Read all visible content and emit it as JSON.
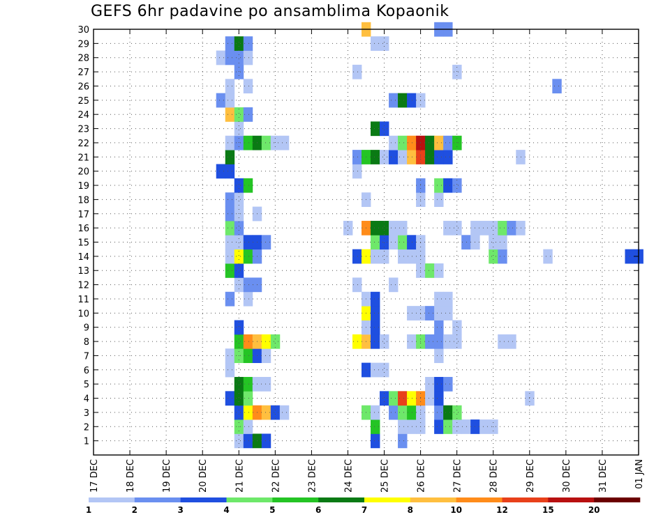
{
  "chart_data": {
    "type": "heatmap",
    "title": "GEFS 6hr padavine po ansamblima Kopaonik",
    "xlabel": "",
    "ylabel": "",
    "x_ticks": [
      "17 DEC",
      "18 DEC",
      "19 DEC",
      "20 DEC",
      "21 DEC",
      "22 DEC",
      "23 DEC",
      "24 DEC",
      "25 DEC",
      "26 DEC",
      "27 DEC",
      "28 DEC",
      "29 DEC",
      "30 DEC",
      "31 DEC",
      "01 JAN"
    ],
    "x_range_days": [
      0,
      15
    ],
    "time_step_hours": 6,
    "y_ticks": [
      1,
      2,
      3,
      4,
      5,
      6,
      7,
      8,
      9,
      10,
      11,
      12,
      13,
      14,
      15,
      16,
      17,
      18,
      19,
      20,
      21,
      22,
      23,
      24,
      25,
      26,
      27,
      28,
      29,
      30
    ],
    "y_range": [
      0,
      30
    ],
    "grid": true,
    "colorbar": {
      "labels": [
        "1",
        "2",
        "3",
        "4",
        "5",
        "6",
        "7",
        "8",
        "10",
        "12",
        "15",
        "20"
      ],
      "colors": [
        "#b3c6f5",
        "#6a8ff0",
        "#1f4fe0",
        "#6ee86a",
        "#24c424",
        "#0a7a14",
        "#ffff00",
        "#ffbf3f",
        "#ff8c1a",
        "#e8401a",
        "#b81010",
        "#6b0000"
      ]
    },
    "cells": [
      {
        "m": 1,
        "d": 4.0,
        "c": 1
      },
      {
        "m": 1,
        "d": 4.25,
        "c": 3
      },
      {
        "m": 1,
        "d": 4.5,
        "c": 6
      },
      {
        "m": 1,
        "d": 4.75,
        "c": 3
      },
      {
        "m": 1,
        "d": 7.75,
        "c": 3
      },
      {
        "m": 1,
        "d": 8.5,
        "c": 2
      },
      {
        "m": 2,
        "d": 4.0,
        "c": 4
      },
      {
        "m": 2,
        "d": 4.25,
        "c": 1
      },
      {
        "m": 2,
        "d": 7.75,
        "c": 5
      },
      {
        "m": 2,
        "d": 8.5,
        "c": 1
      },
      {
        "m": 2,
        "d": 8.75,
        "c": 1
      },
      {
        "m": 2,
        "d": 9.0,
        "c": 1
      },
      {
        "m": 2,
        "d": 9.5,
        "c": 3
      },
      {
        "m": 2,
        "d": 9.75,
        "c": 4
      },
      {
        "m": 2,
        "d": 10.0,
        "c": 1
      },
      {
        "m": 2,
        "d": 10.25,
        "c": 1
      },
      {
        "m": 2,
        "d": 10.5,
        "c": 3
      },
      {
        "m": 2,
        "d": 10.75,
        "c": 1
      },
      {
        "m": 2,
        "d": 11.0,
        "c": 1
      },
      {
        "m": 3,
        "d": 4.0,
        "c": 3
      },
      {
        "m": 3,
        "d": 4.25,
        "c": 7
      },
      {
        "m": 3,
        "d": 4.5,
        "c": 9
      },
      {
        "m": 3,
        "d": 4.75,
        "c": 8
      },
      {
        "m": 3,
        "d": 5.0,
        "c": 3
      },
      {
        "m": 3,
        "d": 5.25,
        "c": 1
      },
      {
        "m": 3,
        "d": 7.5,
        "c": 4
      },
      {
        "m": 3,
        "d": 7.75,
        "c": 1
      },
      {
        "m": 3,
        "d": 8.25,
        "c": 2
      },
      {
        "m": 3,
        "d": 8.5,
        "c": 4
      },
      {
        "m": 3,
        "d": 8.75,
        "c": 5
      },
      {
        "m": 3,
        "d": 9.0,
        "c": 1
      },
      {
        "m": 3,
        "d": 9.5,
        "c": 2
      },
      {
        "m": 3,
        "d": 9.75,
        "c": 6
      },
      {
        "m": 3,
        "d": 10.0,
        "c": 4
      },
      {
        "m": 4,
        "d": 3.75,
        "c": 3
      },
      {
        "m": 4,
        "d": 4.0,
        "c": 6
      },
      {
        "m": 4,
        "d": 4.25,
        "c": 4
      },
      {
        "m": 4,
        "d": 8.0,
        "c": 3
      },
      {
        "m": 4,
        "d": 8.25,
        "c": 4
      },
      {
        "m": 4,
        "d": 8.5,
        "c": 10
      },
      {
        "m": 4,
        "d": 8.75,
        "c": 7
      },
      {
        "m": 4,
        "d": 9.0,
        "c": 9
      },
      {
        "m": 4,
        "d": 9.25,
        "c": 1
      },
      {
        "m": 4,
        "d": 9.5,
        "c": 3
      },
      {
        "m": 4,
        "d": 12.0,
        "c": 1
      },
      {
        "m": 5,
        "d": 4.0,
        "c": 6
      },
      {
        "m": 5,
        "d": 4.25,
        "c": 5
      },
      {
        "m": 5,
        "d": 4.5,
        "c": 1
      },
      {
        "m": 5,
        "d": 4.75,
        "c": 1
      },
      {
        "m": 5,
        "d": 9.25,
        "c": 1
      },
      {
        "m": 5,
        "d": 9.5,
        "c": 3
      },
      {
        "m": 5,
        "d": 9.75,
        "c": 2
      },
      {
        "m": 6,
        "d": 3.75,
        "c": 1
      },
      {
        "m": 6,
        "d": 7.5,
        "c": 3
      },
      {
        "m": 6,
        "d": 7.75,
        "c": 1
      },
      {
        "m": 6,
        "d": 8.0,
        "c": 1
      },
      {
        "m": 7,
        "d": 3.75,
        "c": 1
      },
      {
        "m": 7,
        "d": 4.0,
        "c": 4
      },
      {
        "m": 7,
        "d": 4.25,
        "c": 5
      },
      {
        "m": 7,
        "d": 4.5,
        "c": 3
      },
      {
        "m": 7,
        "d": 4.75,
        "c": 1
      },
      {
        "m": 7,
        "d": 9.5,
        "c": 1
      },
      {
        "m": 8,
        "d": 4.0,
        "c": 5
      },
      {
        "m": 8,
        "d": 4.25,
        "c": 9
      },
      {
        "m": 8,
        "d": 4.5,
        "c": 8
      },
      {
        "m": 8,
        "d": 4.75,
        "c": 7
      },
      {
        "m": 8,
        "d": 5.0,
        "c": 4
      },
      {
        "m": 8,
        "d": 7.25,
        "c": 7
      },
      {
        "m": 8,
        "d": 7.5,
        "c": 8
      },
      {
        "m": 8,
        "d": 7.75,
        "c": 3
      },
      {
        "m": 8,
        "d": 8.0,
        "c": 1
      },
      {
        "m": 8,
        "d": 8.75,
        "c": 1
      },
      {
        "m": 8,
        "d": 9.0,
        "c": 4
      },
      {
        "m": 8,
        "d": 9.25,
        "c": 2
      },
      {
        "m": 8,
        "d": 9.5,
        "c": 2
      },
      {
        "m": 8,
        "d": 9.75,
        "c": 1
      },
      {
        "m": 8,
        "d": 10.0,
        "c": 1
      },
      {
        "m": 8,
        "d": 11.25,
        "c": 1
      },
      {
        "m": 8,
        "d": 11.5,
        "c": 1
      },
      {
        "m": 9,
        "d": 4.0,
        "c": 3
      },
      {
        "m": 9,
        "d": 7.5,
        "c": 1
      },
      {
        "m": 9,
        "d": 7.75,
        "c": 3
      },
      {
        "m": 9,
        "d": 9.5,
        "c": 2
      },
      {
        "m": 9,
        "d": 10.0,
        "c": 1
      },
      {
        "m": 10,
        "d": 7.5,
        "c": 7
      },
      {
        "m": 10,
        "d": 7.75,
        "c": 3
      },
      {
        "m": 10,
        "d": 8.75,
        "c": 1
      },
      {
        "m": 10,
        "d": 9.0,
        "c": 1
      },
      {
        "m": 10,
        "d": 9.25,
        "c": 2
      },
      {
        "m": 10,
        "d": 9.5,
        "c": 1
      },
      {
        "m": 10,
        "d": 9.75,
        "c": 1
      },
      {
        "m": 11,
        "d": 3.75,
        "c": 2
      },
      {
        "m": 11,
        "d": 4.25,
        "c": 1
      },
      {
        "m": 11,
        "d": 7.5,
        "c": 1
      },
      {
        "m": 11,
        "d": 7.75,
        "c": 3
      },
      {
        "m": 11,
        "d": 9.5,
        "c": 1
      },
      {
        "m": 11,
        "d": 9.75,
        "c": 1
      },
      {
        "m": 12,
        "d": 4.0,
        "c": 1
      },
      {
        "m": 12,
        "d": 4.25,
        "c": 2
      },
      {
        "m": 12,
        "d": 4.5,
        "c": 2
      },
      {
        "m": 12,
        "d": 7.25,
        "c": 1
      },
      {
        "m": 12,
        "d": 8.25,
        "c": 1
      },
      {
        "m": 13,
        "d": 3.75,
        "c": 5
      },
      {
        "m": 13,
        "d": 4.0,
        "c": 3
      },
      {
        "m": 13,
        "d": 9.0,
        "c": 1
      },
      {
        "m": 13,
        "d": 9.25,
        "c": 4
      },
      {
        "m": 13,
        "d": 9.5,
        "c": 1
      },
      {
        "m": 14,
        "d": 3.75,
        "c": 1
      },
      {
        "m": 14,
        "d": 4.0,
        "c": 7
      },
      {
        "m": 14,
        "d": 4.25,
        "c": 5
      },
      {
        "m": 14,
        "d": 4.5,
        "c": 2
      },
      {
        "m": 14,
        "d": 7.25,
        "c": 3
      },
      {
        "m": 14,
        "d": 7.5,
        "c": 7
      },
      {
        "m": 14,
        "d": 7.75,
        "c": 1
      },
      {
        "m": 14,
        "d": 8.0,
        "c": 1
      },
      {
        "m": 14,
        "d": 8.5,
        "c": 1
      },
      {
        "m": 14,
        "d": 8.75,
        "c": 1
      },
      {
        "m": 14,
        "d": 9.0,
        "c": 1
      },
      {
        "m": 14,
        "d": 11.0,
        "c": 4
      },
      {
        "m": 14,
        "d": 11.25,
        "c": 2
      },
      {
        "m": 14,
        "d": 12.5,
        "c": 1
      },
      {
        "m": 14,
        "d": 14.75,
        "c": 3
      },
      {
        "m": 14,
        "d": 15.0,
        "c": 3
      },
      {
        "m": 15,
        "d": 3.75,
        "c": 1
      },
      {
        "m": 15,
        "d": 4.0,
        "c": 1
      },
      {
        "m": 15,
        "d": 4.25,
        "c": 3
      },
      {
        "m": 15,
        "d": 4.5,
        "c": 3
      },
      {
        "m": 15,
        "d": 4.75,
        "c": 2
      },
      {
        "m": 15,
        "d": 7.75,
        "c": 4
      },
      {
        "m": 15,
        "d": 8.0,
        "c": 3
      },
      {
        "m": 15,
        "d": 8.25,
        "c": 1
      },
      {
        "m": 15,
        "d": 8.5,
        "c": 4
      },
      {
        "m": 15,
        "d": 8.75,
        "c": 3
      },
      {
        "m": 15,
        "d": 9.0,
        "c": 1
      },
      {
        "m": 15,
        "d": 10.25,
        "c": 2
      },
      {
        "m": 15,
        "d": 10.5,
        "c": 1
      },
      {
        "m": 15,
        "d": 11.0,
        "c": 1
      },
      {
        "m": 15,
        "d": 11.25,
        "c": 1
      },
      {
        "m": 16,
        "d": 3.75,
        "c": 4
      },
      {
        "m": 16,
        "d": 4.0,
        "c": 2
      },
      {
        "m": 16,
        "d": 7.0,
        "c": 1
      },
      {
        "m": 16,
        "d": 7.5,
        "c": 9
      },
      {
        "m": 16,
        "d": 7.75,
        "c": 6
      },
      {
        "m": 16,
        "d": 8.0,
        "c": 6
      },
      {
        "m": 16,
        "d": 8.25,
        "c": 1
      },
      {
        "m": 16,
        "d": 8.5,
        "c": 1
      },
      {
        "m": 16,
        "d": 9.75,
        "c": 1
      },
      {
        "m": 16,
        "d": 10.0,
        "c": 1
      },
      {
        "m": 16,
        "d": 10.5,
        "c": 1
      },
      {
        "m": 16,
        "d": 10.75,
        "c": 1
      },
      {
        "m": 16,
        "d": 11.0,
        "c": 1
      },
      {
        "m": 16,
        "d": 11.25,
        "c": 4
      },
      {
        "m": 16,
        "d": 11.5,
        "c": 2
      },
      {
        "m": 16,
        "d": 11.75,
        "c": 1
      },
      {
        "m": 17,
        "d": 3.75,
        "c": 2
      },
      {
        "m": 17,
        "d": 4.0,
        "c": 1
      },
      {
        "m": 17,
        "d": 4.5,
        "c": 1
      },
      {
        "m": 18,
        "d": 3.75,
        "c": 2
      },
      {
        "m": 18,
        "d": 4.0,
        "c": 1
      },
      {
        "m": 18,
        "d": 7.5,
        "c": 1
      },
      {
        "m": 18,
        "d": 9.0,
        "c": 1
      },
      {
        "m": 18,
        "d": 9.5,
        "c": 1
      },
      {
        "m": 19,
        "d": 4.0,
        "c": 3
      },
      {
        "m": 19,
        "d": 4.25,
        "c": 5
      },
      {
        "m": 19,
        "d": 9.0,
        "c": 2
      },
      {
        "m": 19,
        "d": 9.5,
        "c": 4
      },
      {
        "m": 19,
        "d": 9.75,
        "c": 3
      },
      {
        "m": 19,
        "d": 10.0,
        "c": 2
      },
      {
        "m": 20,
        "d": 3.5,
        "c": 3
      },
      {
        "m": 20,
        "d": 3.75,
        "c": 3
      },
      {
        "m": 20,
        "d": 7.25,
        "c": 1
      },
      {
        "m": 21,
        "d": 3.75,
        "c": 6
      },
      {
        "m": 21,
        "d": 7.25,
        "c": 2
      },
      {
        "m": 21,
        "d": 7.5,
        "c": 5
      },
      {
        "m": 21,
        "d": 7.75,
        "c": 6
      },
      {
        "m": 21,
        "d": 8.0,
        "c": 1
      },
      {
        "m": 21,
        "d": 8.25,
        "c": 3
      },
      {
        "m": 21,
        "d": 8.5,
        "c": 1
      },
      {
        "m": 21,
        "d": 8.75,
        "c": 8
      },
      {
        "m": 21,
        "d": 9.0,
        "c": 10
      },
      {
        "m": 21,
        "d": 9.25,
        "c": 6
      },
      {
        "m": 21,
        "d": 9.5,
        "c": 3
      },
      {
        "m": 21,
        "d": 9.75,
        "c": 3
      },
      {
        "m": 21,
        "d": 11.75,
        "c": 1
      },
      {
        "m": 22,
        "d": 3.75,
        "c": 1
      },
      {
        "m": 22,
        "d": 4.0,
        "c": 2
      },
      {
        "m": 22,
        "d": 4.25,
        "c": 5
      },
      {
        "m": 22,
        "d": 4.5,
        "c": 6
      },
      {
        "m": 22,
        "d": 4.75,
        "c": 4
      },
      {
        "m": 22,
        "d": 5.0,
        "c": 1
      },
      {
        "m": 22,
        "d": 5.25,
        "c": 1
      },
      {
        "m": 22,
        "d": 8.25,
        "c": 1
      },
      {
        "m": 22,
        "d": 8.5,
        "c": 4
      },
      {
        "m": 22,
        "d": 8.75,
        "c": 9
      },
      {
        "m": 22,
        "d": 9.0,
        "c": 11
      },
      {
        "m": 22,
        "d": 9.25,
        "c": 6
      },
      {
        "m": 22,
        "d": 9.5,
        "c": 8
      },
      {
        "m": 22,
        "d": 9.75,
        "c": 2
      },
      {
        "m": 22,
        "d": 10.0,
        "c": 5
      },
      {
        "m": 23,
        "d": 4.0,
        "c": 1
      },
      {
        "m": 23,
        "d": 7.75,
        "c": 6
      },
      {
        "m": 23,
        "d": 8.0,
        "c": 3
      },
      {
        "m": 24,
        "d": 3.75,
        "c": 8
      },
      {
        "m": 24,
        "d": 4.0,
        "c": 4
      },
      {
        "m": 24,
        "d": 4.25,
        "c": 2
      },
      {
        "m": 25,
        "d": 3.5,
        "c": 2
      },
      {
        "m": 25,
        "d": 3.75,
        "c": 1
      },
      {
        "m": 25,
        "d": 8.25,
        "c": 2
      },
      {
        "m": 25,
        "d": 8.5,
        "c": 6
      },
      {
        "m": 25,
        "d": 8.75,
        "c": 3
      },
      {
        "m": 25,
        "d": 9.0,
        "c": 1
      },
      {
        "m": 26,
        "d": 3.75,
        "c": 1
      },
      {
        "m": 26,
        "d": 4.25,
        "c": 1
      },
      {
        "m": 26,
        "d": 12.75,
        "c": 2
      },
      {
        "m": 27,
        "d": 4.0,
        "c": 2
      },
      {
        "m": 27,
        "d": 7.25,
        "c": 1
      },
      {
        "m": 27,
        "d": 10.0,
        "c": 1
      },
      {
        "m": 28,
        "d": 3.5,
        "c": 1
      },
      {
        "m": 28,
        "d": 3.75,
        "c": 2
      },
      {
        "m": 28,
        "d": 4.0,
        "c": 2
      },
      {
        "m": 28,
        "d": 4.25,
        "c": 1
      },
      {
        "m": 29,
        "d": 3.75,
        "c": 2
      },
      {
        "m": 29,
        "d": 4.0,
        "c": 6
      },
      {
        "m": 29,
        "d": 4.25,
        "c": 2
      },
      {
        "m": 29,
        "d": 7.75,
        "c": 1
      },
      {
        "m": 29,
        "d": 8.0,
        "c": 1
      },
      {
        "m": 30,
        "d": 7.5,
        "c": 8
      },
      {
        "m": 30,
        "d": 9.5,
        "c": 2
      },
      {
        "m": 30,
        "d": 9.75,
        "c": 2
      }
    ]
  }
}
